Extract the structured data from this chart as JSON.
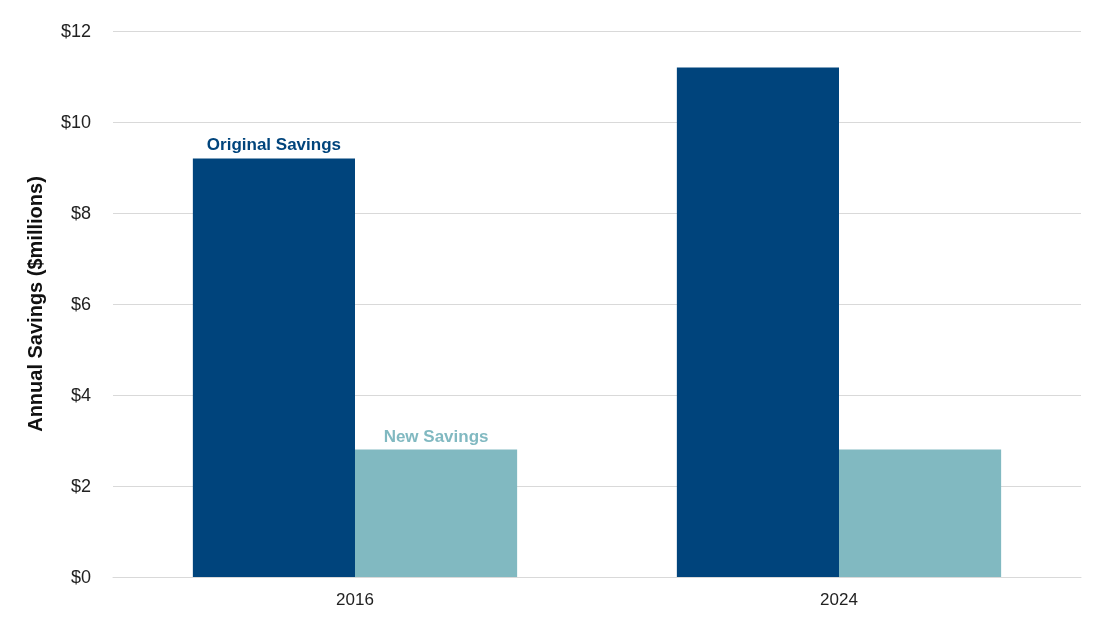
{
  "chart_data": {
    "type": "bar",
    "ylabel": "Annual Savings ($millions)",
    "categories": [
      "2016",
      "2024"
    ],
    "series": [
      {
        "name": "Original Savings",
        "color": "#00447c",
        "values": [
          9.2,
          11.2
        ]
      },
      {
        "name": "New Savings",
        "color": "#81b9c1",
        "values": [
          2.8,
          2.8
        ]
      }
    ],
    "ylim": [
      0,
      12
    ],
    "yticks": [
      {
        "value": 0,
        "label": "$0"
      },
      {
        "value": 2,
        "label": "$2"
      },
      {
        "value": 4,
        "label": "$4"
      },
      {
        "value": 6,
        "label": "$6"
      },
      {
        "value": 8,
        "label": "$8"
      },
      {
        "value": 10,
        "label": "$10"
      },
      {
        "value": 12,
        "label": "$12"
      }
    ],
    "grid": "y",
    "legend": false
  }
}
